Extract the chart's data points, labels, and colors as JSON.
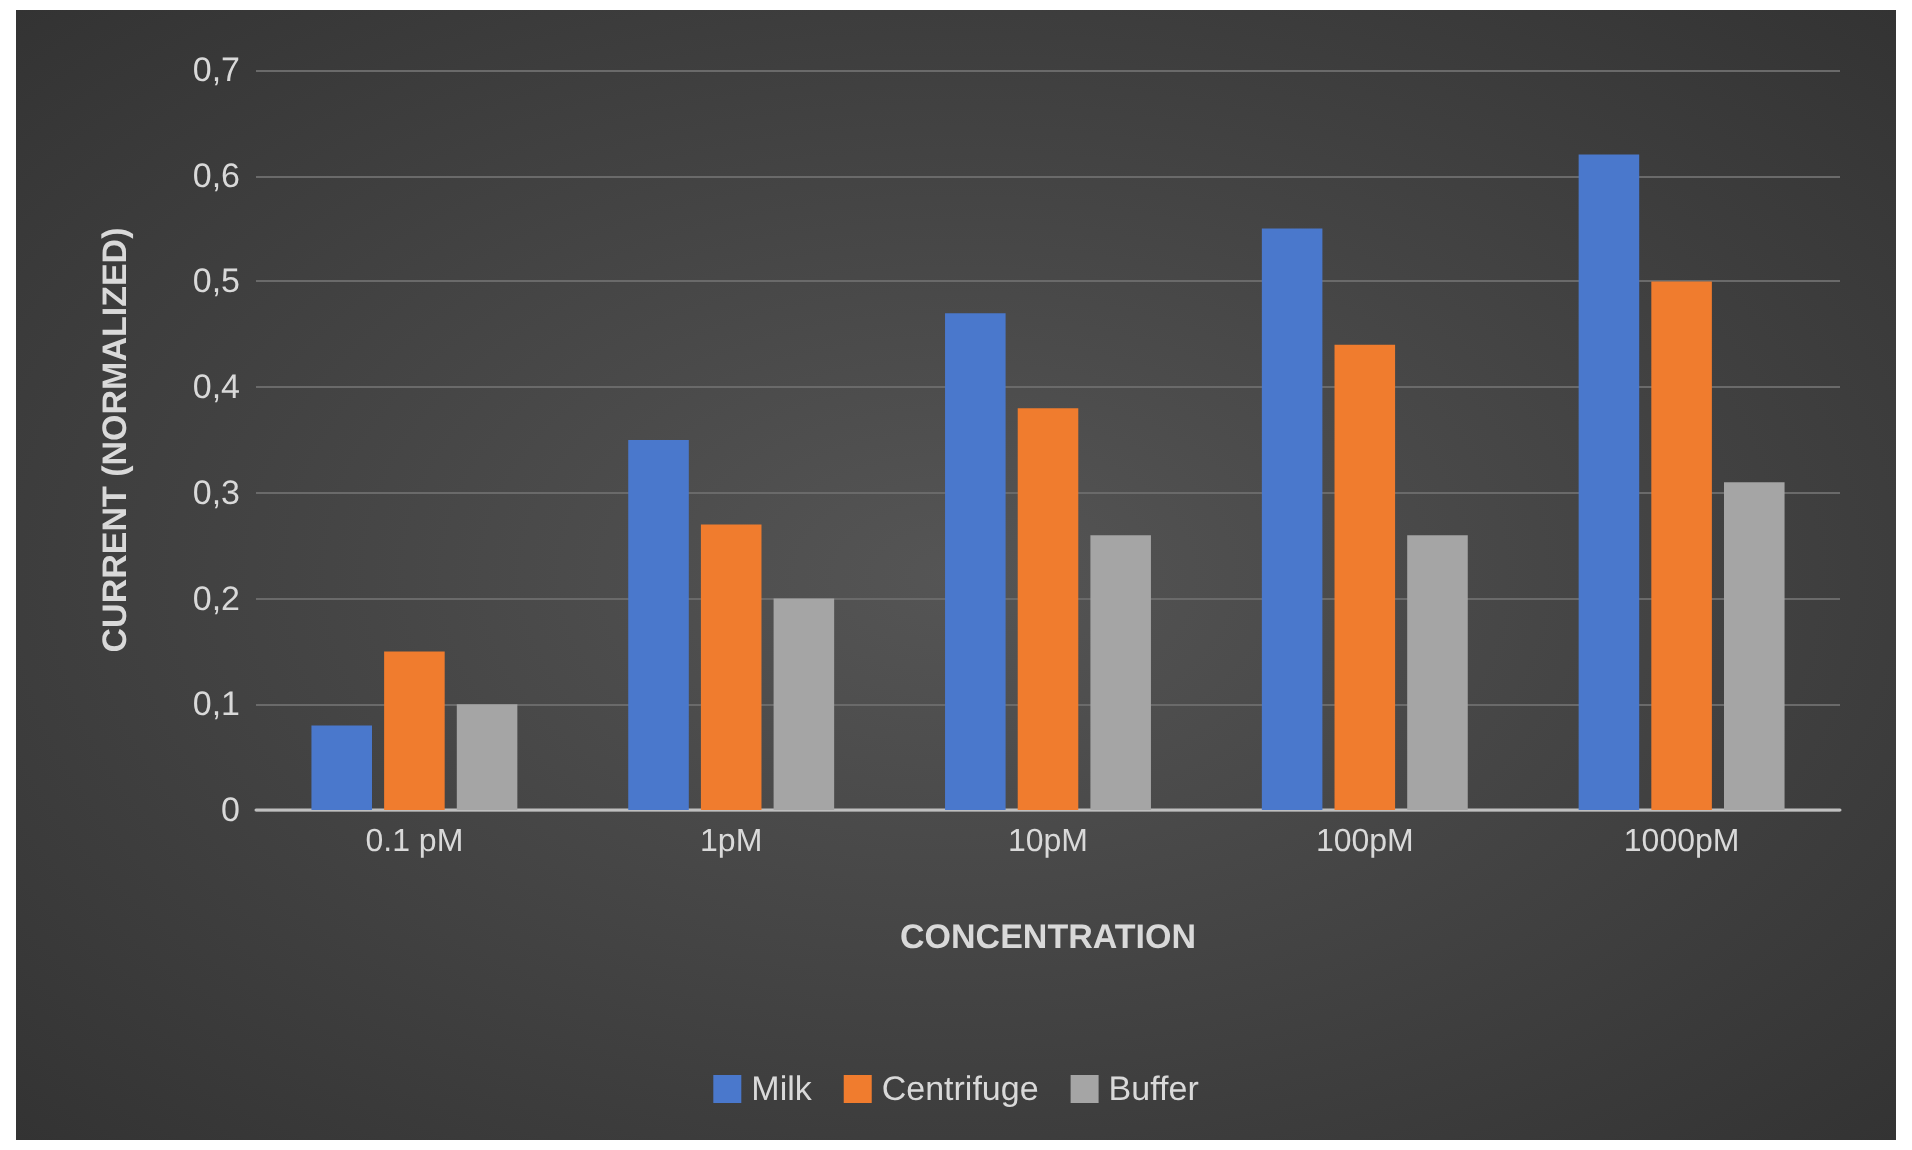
{
  "chart_data": {
    "type": "bar",
    "xlabel": "CONCENTRATION",
    "ylabel": "CURRENT (NORMALIZED)",
    "categories": [
      "0.1 pM",
      "1pM",
      "10pM",
      "100pM",
      "1000pM"
    ],
    "series": [
      {
        "name": "Milk",
        "color": "#4a78cc",
        "values": [
          0.08,
          0.35,
          0.47,
          0.55,
          0.62
        ]
      },
      {
        "name": "Centrifuge",
        "color": "#f07c2e",
        "values": [
          0.15,
          0.27,
          0.38,
          0.44,
          0.5
        ]
      },
      {
        "name": "Buffer",
        "color": "#a5a5a5",
        "values": [
          0.1,
          0.2,
          0.26,
          0.26,
          0.31
        ]
      }
    ],
    "ylim": [
      0,
      0.7
    ],
    "yticks": [
      0,
      {
        "value": 0.1,
        "label": "0,1"
      },
      {
        "value": 0.2,
        "label": "0,2"
      },
      {
        "value": 0.3,
        "label": "0,3"
      },
      {
        "value": 0.4,
        "label": "0,4"
      },
      {
        "value": 0.5,
        "label": "0,5"
      },
      {
        "value": 0.6,
        "label": "0,6"
      },
      {
        "value": 0.7,
        "label": "0,7"
      }
    ],
    "grid": "y",
    "legend": "bottom"
  }
}
